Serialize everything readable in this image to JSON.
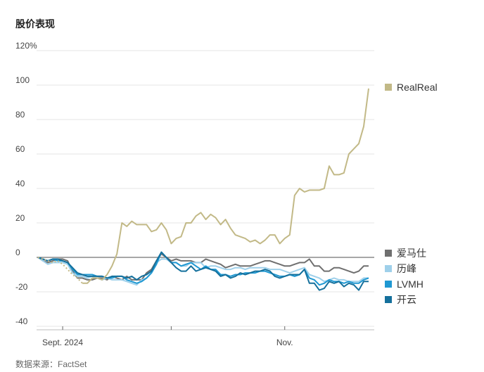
{
  "title": "股价表现",
  "source": "数据来源：FactSet",
  "chart_data": {
    "type": "line",
    "title": "股价表现",
    "ylabel": "",
    "xlabel": "",
    "ylim": [
      -40,
      120
    ],
    "yticks": [
      -40,
      -20,
      0,
      20,
      40,
      60,
      80,
      100,
      120
    ],
    "ytick_labels": [
      "-40",
      "-20",
      "0",
      "20",
      "40",
      "60",
      "80",
      "100",
      "120%"
    ],
    "x_count": 68,
    "xticks": [
      {
        "index": 5,
        "label": "Sept. 2024"
      },
      {
        "index": 27,
        "label": ""
      },
      {
        "index": 50,
        "label": "Nov."
      }
    ],
    "grid": true,
    "legend_position": "right",
    "series": [
      {
        "name": "RealReal",
        "color": "#c2b987",
        "dotted_range": [
          0,
          9
        ],
        "values": [
          0,
          -1,
          -2,
          -3,
          -2,
          -4,
          -7,
          -10,
          -12,
          -15,
          -15,
          -12,
          -12,
          -13,
          -10,
          -5,
          2,
          20,
          18,
          21,
          19,
          19,
          19,
          15,
          16,
          20,
          16,
          8,
          11,
          12,
          20,
          20,
          24,
          26,
          22,
          25,
          23,
          19,
          22,
          17,
          13,
          12,
          11,
          9,
          10,
          8,
          10,
          13,
          13,
          8,
          11,
          13,
          36,
          40,
          38,
          39,
          39,
          39,
          40,
          53,
          48,
          48,
          49,
          60,
          63,
          66,
          76,
          98
        ]
      },
      {
        "name": "爱马仕",
        "color": "#6f6f6f",
        "values": [
          0,
          -2,
          -3,
          -2,
          -1,
          -1,
          -2,
          -8,
          -12,
          -12,
          -13,
          -13,
          -12,
          -12,
          -13,
          -11,
          -12,
          -13,
          -11,
          -13,
          -13,
          -13,
          -9,
          -7,
          -2,
          2,
          0,
          -2,
          -1,
          -2,
          -2,
          -2,
          -3,
          -3,
          -1,
          -2,
          -3,
          -4,
          -6,
          -5,
          -4,
          -5,
          -5,
          -5,
          -4,
          -3,
          -2,
          -2,
          -3,
          -4,
          -5,
          -5,
          -4,
          -3,
          -3,
          -1,
          -5,
          -5,
          -8,
          -8,
          -6,
          -6,
          -7,
          -8,
          -9,
          -8,
          -5,
          -5
        ]
      },
      {
        "name": "历峰",
        "color": "#9fd0ea",
        "values": [
          0,
          -2,
          -4,
          -3,
          -3,
          -3,
          -4,
          -9,
          -11,
          -11,
          -12,
          -11,
          -12,
          -13,
          -12,
          -13,
          -13,
          -13,
          -14,
          -15,
          -16,
          -13,
          -12,
          -9,
          -3,
          -1,
          -1,
          -3,
          -3,
          -5,
          -5,
          -3,
          -3,
          -3,
          -6,
          -5,
          -5,
          -6,
          -7,
          -7,
          -6,
          -6,
          -7,
          -6,
          -6,
          -6,
          -6,
          -7,
          -7,
          -7,
          -8,
          -9,
          -8,
          -7,
          -6,
          -10,
          -11,
          -12,
          -14,
          -13,
          -12,
          -13,
          -13,
          -14,
          -14,
          -14,
          -12,
          -12
        ]
      },
      {
        "name": "LVMH",
        "color": "#1f98d2",
        "values": [
          0,
          -1,
          -2,
          -1,
          -2,
          -2,
          -3,
          -7,
          -10,
          -10,
          -10,
          -10,
          -11,
          -11,
          -12,
          -12,
          -11,
          -11,
          -13,
          -14,
          -15,
          -14,
          -12,
          -9,
          -4,
          3,
          0,
          -3,
          -3,
          -5,
          -4,
          -3,
          -5,
          -7,
          -5,
          -7,
          -7,
          -10,
          -10,
          -11,
          -10,
          -10,
          -9,
          -9,
          -9,
          -8,
          -8,
          -9,
          -10,
          -11,
          -11,
          -10,
          -11,
          -10,
          -7,
          -12,
          -13,
          -16,
          -15,
          -13,
          -14,
          -14,
          -15,
          -14,
          -15,
          -15,
          -13,
          -12
        ]
      },
      {
        "name": "开云",
        "color": "#15709c",
        "values": [
          0,
          -1,
          -2,
          -1,
          -1,
          -2,
          -3,
          -6,
          -9,
          -10,
          -11,
          -11,
          -11,
          -11,
          -12,
          -11,
          -11,
          -11,
          -12,
          -11,
          -13,
          -11,
          -10,
          -8,
          -2,
          3,
          0,
          -3,
          -6,
          -8,
          -8,
          -5,
          -8,
          -7,
          -6,
          -7,
          -8,
          -11,
          -10,
          -12,
          -11,
          -9,
          -10,
          -9,
          -8,
          -8,
          -7,
          -8,
          -11,
          -12,
          -11,
          -10,
          -10,
          -10,
          -7,
          -15,
          -15,
          -19,
          -18,
          -14,
          -15,
          -14,
          -17,
          -15,
          -16,
          -19,
          -14,
          -14
        ]
      }
    ]
  }
}
